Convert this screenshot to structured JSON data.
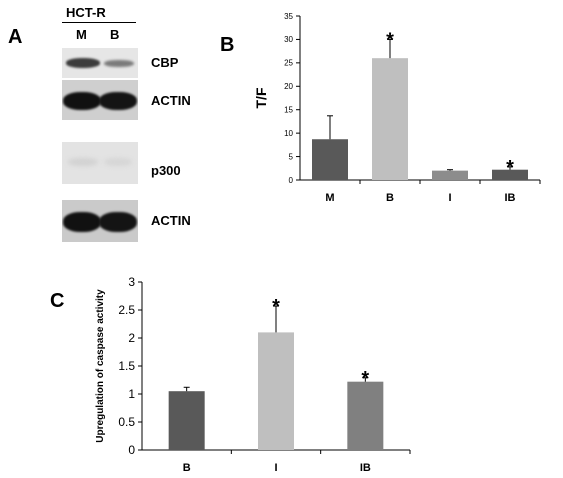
{
  "figure": {
    "panel_letters": [
      "A",
      "B",
      "C"
    ]
  },
  "blot": {
    "header": "HCT-R",
    "lanes": [
      "M",
      "B"
    ],
    "rows": [
      {
        "label": "CBP"
      },
      {
        "label": "ACTIN"
      },
      {
        "label": "p300"
      },
      {
        "label": "ACTIN"
      }
    ]
  },
  "chart_data": [
    {
      "panel": "B",
      "type": "bar",
      "categories": [
        "M",
        "B",
        "I",
        "IB"
      ],
      "values": [
        8.7,
        26.0,
        2.0,
        2.2
      ],
      "errors": [
        5.0,
        4.0,
        0.2,
        0.6
      ],
      "significance": [
        "",
        "*",
        "",
        "*"
      ],
      "colors": [
        "#595959",
        "#bfbfbf",
        "#8c8c8c",
        "#595959"
      ],
      "title": "",
      "xlabel": "",
      "ylabel": "T/F",
      "ylim": [
        0,
        35
      ],
      "yticks": [
        0,
        5,
        10,
        15,
        20,
        25,
        30,
        35
      ],
      "grid": false,
      "legend": "none"
    },
    {
      "panel": "C",
      "type": "bar",
      "categories": [
        "B",
        "I",
        "IB"
      ],
      "values": [
        1.05,
        2.1,
        1.22
      ],
      "errors": [
        0.07,
        0.47,
        0.07
      ],
      "significance": [
        "",
        "*",
        "*"
      ],
      "colors": [
        "#595959",
        "#bfbfbf",
        "#808080"
      ],
      "title": "",
      "xlabel": "",
      "ylabel": "Upregulation of caspase activity",
      "ylim": [
        0,
        3
      ],
      "yticks": [
        0,
        0.5,
        1,
        1.5,
        2,
        2.5,
        3
      ],
      "grid": false,
      "legend": "none"
    }
  ]
}
